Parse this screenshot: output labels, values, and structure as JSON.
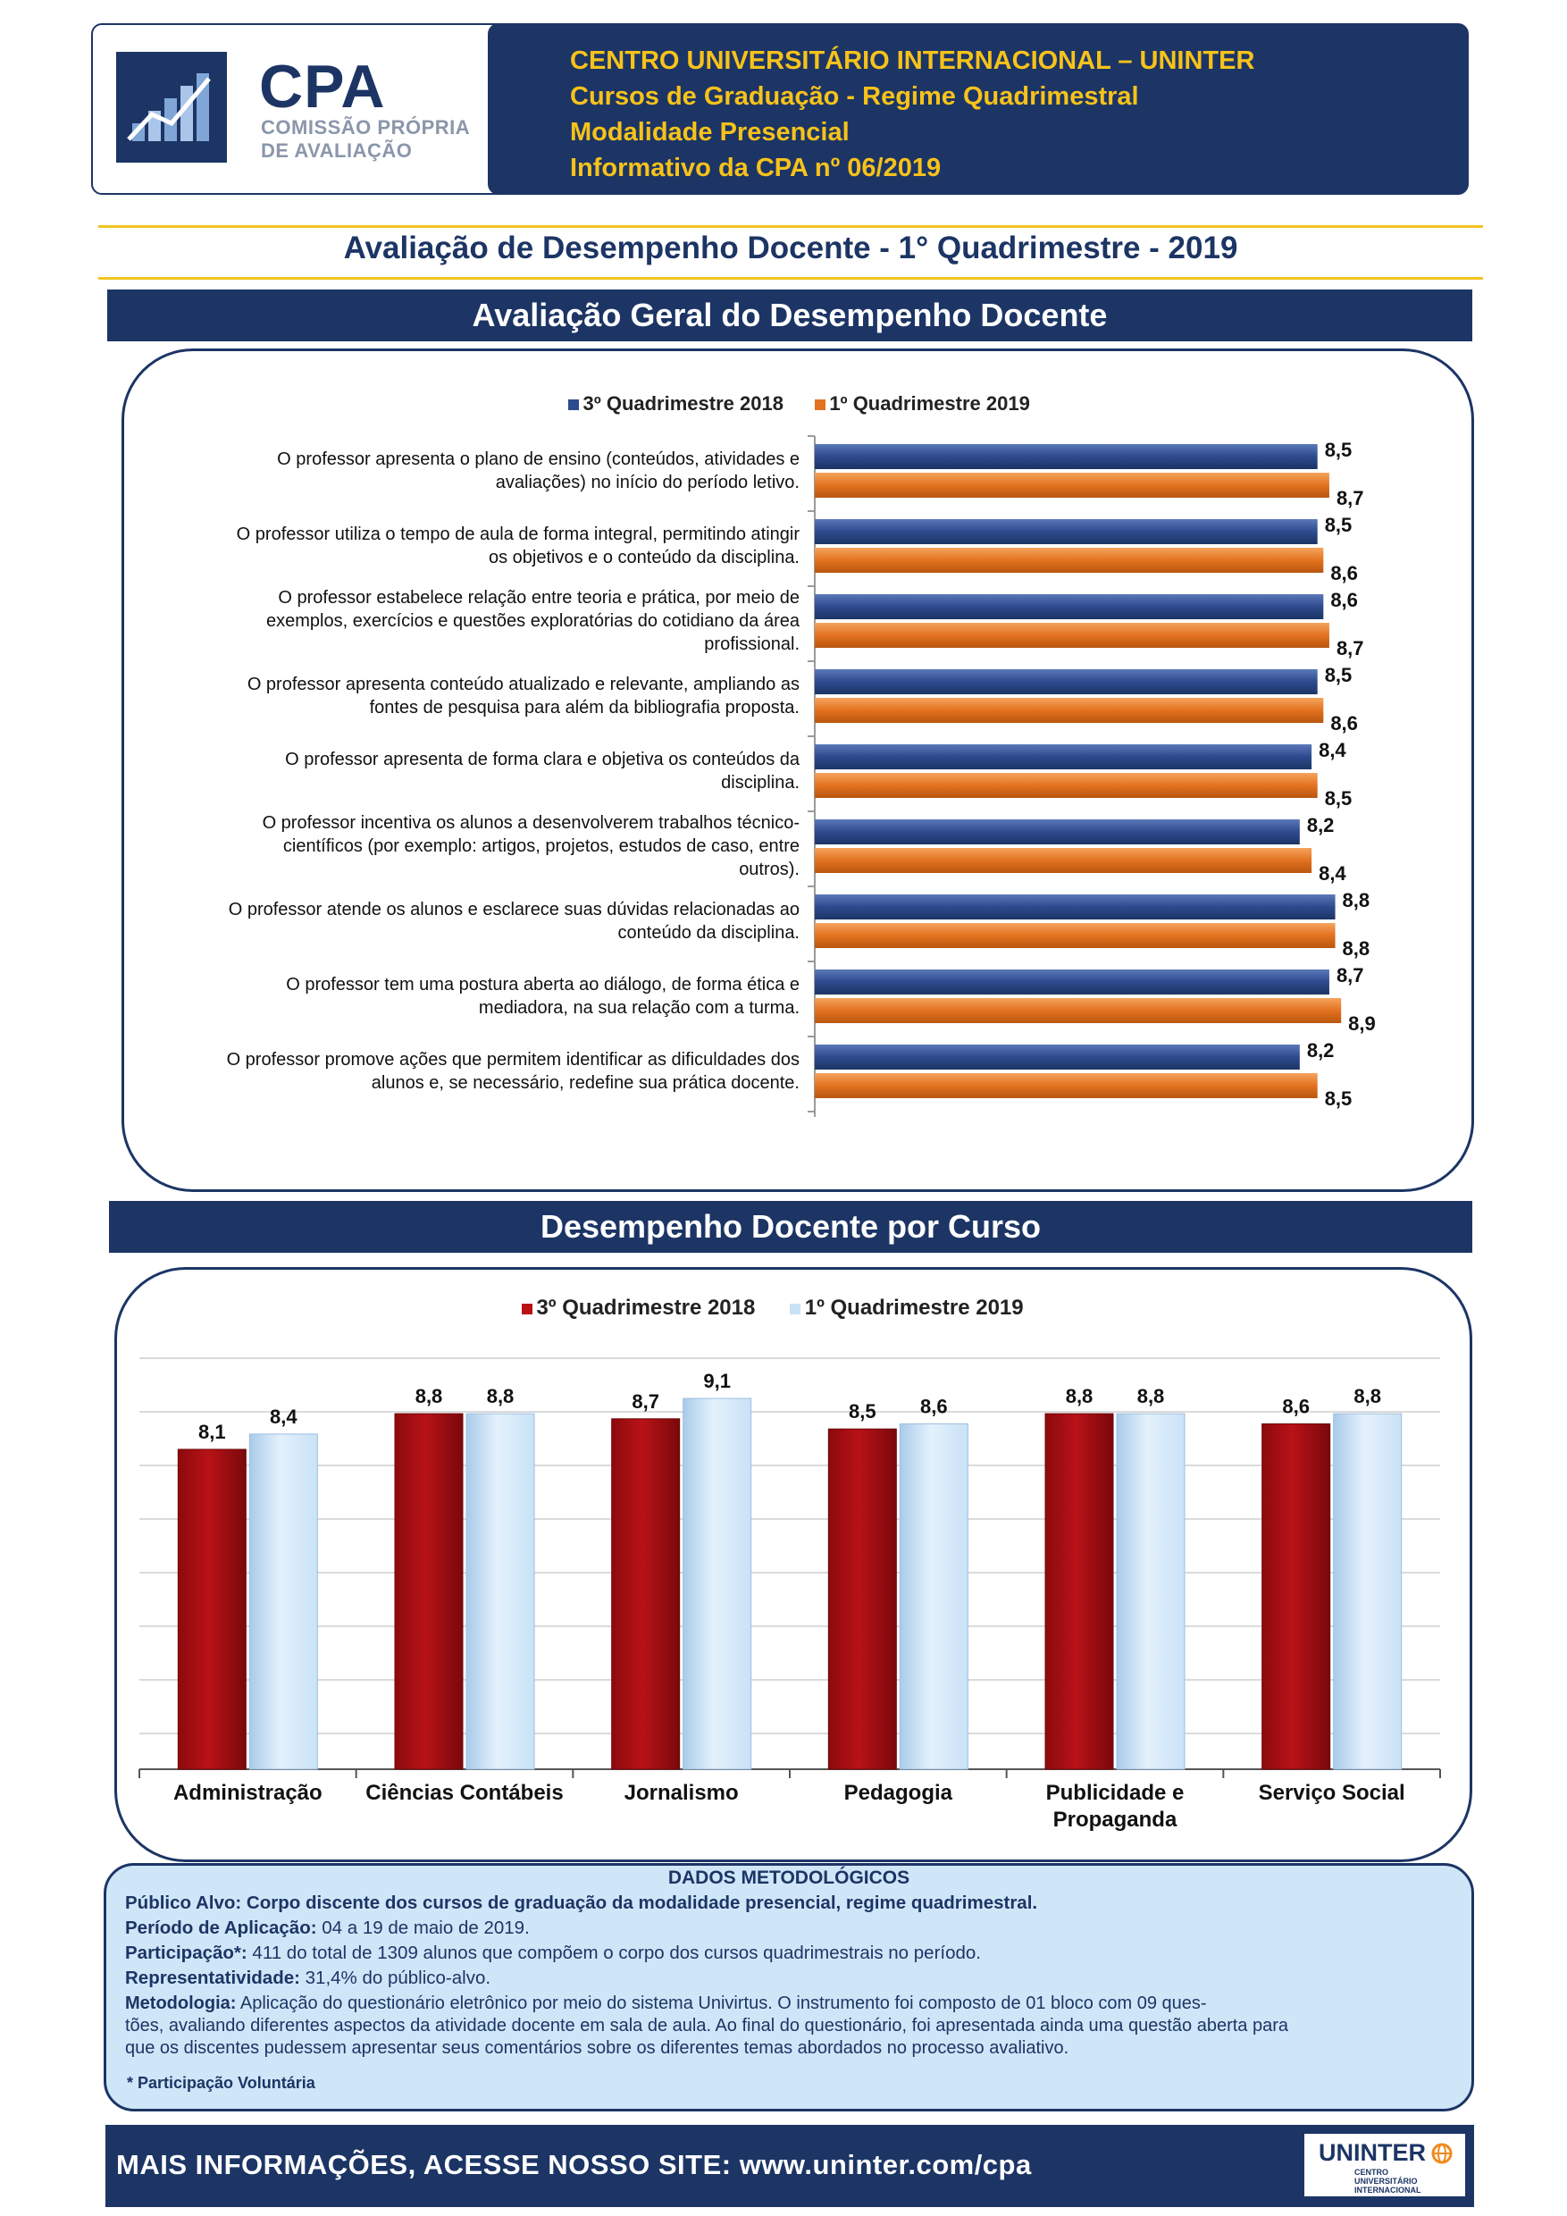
{
  "header": {
    "logo_title": "CPA",
    "logo_subtitle_1": "COMISSÃO PRÓPRIA",
    "logo_subtitle_2": "DE AVALIAÇÃO",
    "line1": "CENTRO UNIVERSITÁRIO INTERNACIONAL – UNINTER",
    "line2": "Cursos de Graduação - Regime Quadrimestral",
    "line3": "Modalidade Presencial",
    "line4": "Informativo da CPA nº 06/2019"
  },
  "main_title": "Avaliação de Desempenho Docente - 1° Quadrimestre - 2019",
  "section1_title": "Avaliação Geral do Desempenho Docente",
  "section2_title": "Desempenho Docente por Curso",
  "colors": {
    "navy": "#1c3565",
    "gold": "#f7c21a",
    "series_2018_blue": "#2e4a8e",
    "series_2019_orange": "#e2721f",
    "series_2018_red": "#b81217",
    "series_2019_lightblue": "#c9e2f6",
    "method_bg": "#cfe6f8"
  },
  "chart_data": [
    {
      "type": "bar",
      "orientation": "horizontal",
      "title": "",
      "categories": [
        "O professor apresenta o plano de ensino (conteúdos, atividades e avaliações) no início do período letivo.",
        "O professor utiliza o tempo de aula de forma integral, permitindo atingir os objetivos e o conteúdo da disciplina.",
        "O professor estabelece relação entre teoria e prática, por meio de exemplos, exercícios e questões exploratórias do cotidiano da área profissional.",
        "O professor apresenta conteúdo atualizado e relevante, ampliando as fontes de pesquisa para além da bibliografia proposta.",
        "O professor apresenta de forma clara e objetiva os conteúdos da disciplina.",
        "O professor incentiva os alunos a desenvolverem trabalhos técnico-científicos (por exemplo: artigos, projetos, estudos de caso, entre outros).",
        "O professor atende os alunos e esclarece suas dúvidas relacionadas ao conteúdo da disciplina.",
        "O professor tem uma postura aberta ao diálogo, de forma ética e mediadora, na sua relação com a turma.",
        "O professor promove ações que permitem identificar as dificuldades dos alunos e, se necessário, redefine sua prática docente."
      ],
      "category_lines": [
        [
          "O professor apresenta o plano de ensino (conteúdos, atividades e",
          "avaliações) no início do período letivo."
        ],
        [
          "O professor utiliza o tempo de aula de forma integral, permitindo atingir",
          "os objetivos e o conteúdo da disciplina."
        ],
        [
          "O professor estabelece relação entre teoria e prática, por meio de",
          "exemplos, exercícios e questões exploratórias do cotidiano da área",
          "profissional."
        ],
        [
          "O professor apresenta conteúdo atualizado e relevante, ampliando as",
          "fontes de pesquisa para além da bibliografia proposta."
        ],
        [
          "O professor apresenta de forma clara e objetiva os conteúdos da",
          "disciplina."
        ],
        [
          "O professor incentiva os alunos a desenvolverem trabalhos técnico-",
          "científicos (por exemplo: artigos, projetos, estudos de caso, entre",
          "outros)."
        ],
        [
          "O professor atende os alunos e esclarece suas dúvidas relacionadas ao",
          "conteúdo da disciplina."
        ],
        [
          "O professor tem uma postura aberta ao diálogo, de forma ética e",
          "mediadora, na sua relação com a turma."
        ],
        [
          "O professor promove ações que permitem identificar as dificuldades dos",
          "alunos e, se necessário, redefine sua prática docente."
        ]
      ],
      "series": [
        {
          "name": "3º Quadrimestre 2018",
          "values": [
            8.5,
            8.5,
            8.6,
            8.5,
            8.4,
            8.2,
            8.8,
            8.7,
            8.2
          ],
          "labels": [
            "8,5",
            "8,5",
            "8,6",
            "8,5",
            "8,4",
            "8,2",
            "8,8",
            "8,7",
            "8,2"
          ]
        },
        {
          "name": "1º Quadrimestre 2019",
          "values": [
            8.7,
            8.6,
            8.7,
            8.6,
            8.5,
            8.4,
            8.8,
            8.9,
            8.5
          ],
          "labels": [
            "8,7",
            "8,6",
            "8,7",
            "8,6",
            "8,5",
            "8,4",
            "8,8",
            "8,9",
            "8,5"
          ]
        }
      ],
      "xlim": [
        0,
        10
      ],
      "legend_position": "top",
      "grid": false
    },
    {
      "type": "bar",
      "orientation": "vertical",
      "title": "",
      "categories": [
        "Administração",
        "Ciências Contábeis",
        "Jornalismo",
        "Pedagogia",
        "Publicidade e Propaganda",
        "Serviço Social"
      ],
      "category_lines": [
        [
          "Administração"
        ],
        [
          "Ciências Contábeis"
        ],
        [
          "Jornalismo"
        ],
        [
          "Pedagogia"
        ],
        [
          "Publicidade e",
          "Propaganda"
        ],
        [
          "Serviço Social"
        ]
      ],
      "series": [
        {
          "name": "3º Quadrimestre 2018",
          "values": [
            8.1,
            8.8,
            8.7,
            8.5,
            8.8,
            8.6
          ],
          "labels": [
            "8,1",
            "8,8",
            "8,7",
            "8,5",
            "8,8",
            "8,6"
          ]
        },
        {
          "name": "1º Quadrimestre 2019",
          "values": [
            8.4,
            8.8,
            9.1,
            8.6,
            8.8,
            8.8
          ],
          "labels": [
            "8,4",
            "8,8",
            "9,1",
            "8,6",
            "8,8",
            "8,8"
          ]
        }
      ],
      "ylim": [
        0,
        10
      ],
      "legend_position": "top",
      "grid": true
    }
  ],
  "methodology": {
    "title": "DADOS METODOLÓGICOS",
    "publico": "Público Alvo: Corpo discente dos cursos de graduação da modalidade presencial, regime quadrimestral.",
    "periodo_label": "Período de Aplicação:",
    "periodo_value": " 04 a 19 de maio de 2019.",
    "participacao_label": "Participação*:",
    "participacao_value": " 411 do total de 1309 alunos que compõem o corpo dos cursos quadrimestrais no período.",
    "representatividade_label": "Representatividade:",
    "representatividade_value": " 31,4% do público-alvo.",
    "metodologia_label": "Metodologia:",
    "metodologia_value_1": "  Aplicação do questionário eletrônico por meio do sistema Univirtus. O instrumento foi composto de 01 bloco com 09 ques-",
    "metodologia_value_2": "tões, avaliando diferentes aspectos da atividade docente em sala de aula. Ao final do questionário, foi apresentada ainda uma questão aberta para",
    "metodologia_value_3": "que os discentes pudessem apresentar seus comentários sobre os diferentes temas abordados no processo avaliativo.",
    "note": "* Participação Voluntária"
  },
  "footer": {
    "text": "MAIS INFORMAÇÕES, ACESSE NOSSO SITE: www.uninter.com/cpa",
    "logo_main": "UNINTER",
    "logo_sub_1": "CENTRO",
    "logo_sub_2": "UNIVERSITÁRIO",
    "logo_sub_3": "INTERNACIONAL"
  }
}
